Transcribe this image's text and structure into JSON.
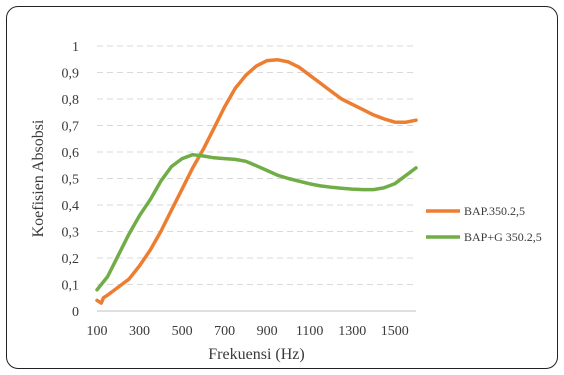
{
  "chart_data": {
    "type": "line",
    "title": "",
    "xlabel": "Frekuensi (Hz)",
    "ylabel": "Koefisien Absobsi",
    "xlim": [
      100,
      1600
    ],
    "ylim": [
      0,
      1
    ],
    "x_ticks": [
      "100",
      "300",
      "500",
      "700",
      "900",
      "1100",
      "1300",
      "1500"
    ],
    "y_ticks": [
      "0",
      "0,1",
      "0,2",
      "0,3",
      "0,4",
      "0,5",
      "0,6",
      "0,7",
      "0,8",
      "0,9",
      "1"
    ],
    "grid": "horizontal-dashed",
    "legend_position": "right",
    "series": [
      {
        "name": "BAP.350.2,5",
        "color": "#ed7d31",
        "points": [
          [
            100,
            0.04
          ],
          [
            120,
            0.03
          ],
          [
            130,
            0.05
          ],
          [
            150,
            0.06
          ],
          [
            200,
            0.09
          ],
          [
            250,
            0.12
          ],
          [
            300,
            0.17
          ],
          [
            350,
            0.23
          ],
          [
            400,
            0.3
          ],
          [
            450,
            0.38
          ],
          [
            500,
            0.46
          ],
          [
            550,
            0.54
          ],
          [
            600,
            0.61
          ],
          [
            650,
            0.69
          ],
          [
            700,
            0.77
          ],
          [
            750,
            0.84
          ],
          [
            800,
            0.89
          ],
          [
            850,
            0.925
          ],
          [
            900,
            0.945
          ],
          [
            950,
            0.948
          ],
          [
            1000,
            0.94
          ],
          [
            1050,
            0.92
          ],
          [
            1100,
            0.89
          ],
          [
            1150,
            0.86
          ],
          [
            1200,
            0.83
          ],
          [
            1250,
            0.8
          ],
          [
            1300,
            0.78
          ],
          [
            1350,
            0.76
          ],
          [
            1400,
            0.74
          ],
          [
            1450,
            0.725
          ],
          [
            1500,
            0.713
          ],
          [
            1550,
            0.712
          ],
          [
            1600,
            0.72
          ]
        ]
      },
      {
        "name": "BAP+G 350.2,5",
        "color": "#70ad47",
        "points": [
          [
            100,
            0.08
          ],
          [
            150,
            0.13
          ],
          [
            200,
            0.21
          ],
          [
            250,
            0.29
          ],
          [
            300,
            0.36
          ],
          [
            350,
            0.42
          ],
          [
            400,
            0.49
          ],
          [
            450,
            0.545
          ],
          [
            500,
            0.575
          ],
          [
            550,
            0.59
          ],
          [
            600,
            0.585
          ],
          [
            650,
            0.578
          ],
          [
            700,
            0.575
          ],
          [
            750,
            0.572
          ],
          [
            800,
            0.565
          ],
          [
            850,
            0.548
          ],
          [
            900,
            0.53
          ],
          [
            950,
            0.512
          ],
          [
            1000,
            0.5
          ],
          [
            1050,
            0.49
          ],
          [
            1100,
            0.48
          ],
          [
            1150,
            0.472
          ],
          [
            1200,
            0.467
          ],
          [
            1250,
            0.463
          ],
          [
            1300,
            0.46
          ],
          [
            1350,
            0.458
          ],
          [
            1400,
            0.458
          ],
          [
            1450,
            0.465
          ],
          [
            1500,
            0.48
          ],
          [
            1550,
            0.51
          ],
          [
            1600,
            0.54
          ]
        ]
      }
    ]
  }
}
